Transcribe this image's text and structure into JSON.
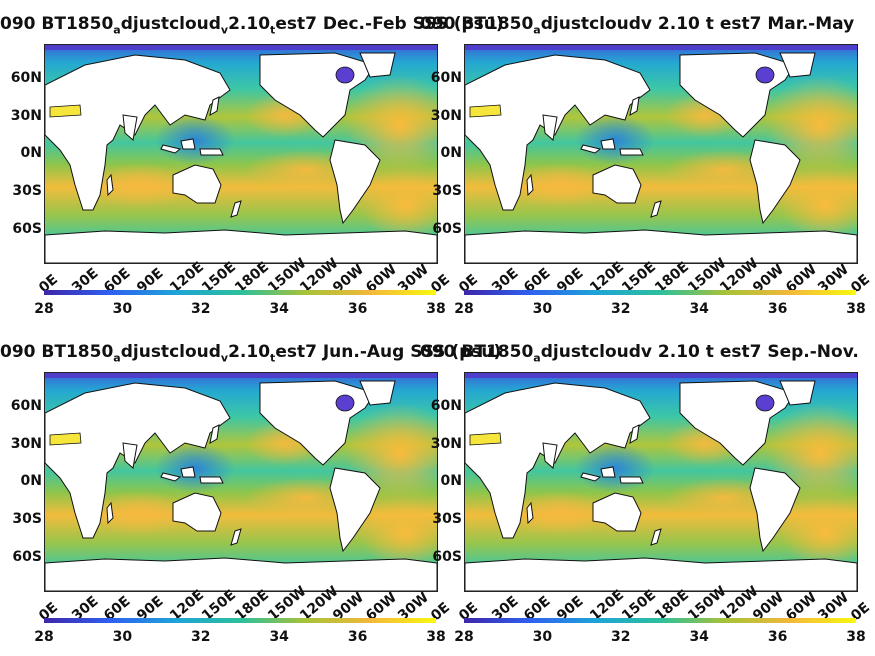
{
  "panels": [
    {
      "id": "djf",
      "title_pre": "090 BT1850",
      "title_sub1": "a",
      "title_mid1": "djustcloud",
      "title_sub2": "v",
      "title_mid2": "2.10",
      "title_sub3": "t",
      "title_post": "est7 Dec.-Feb SSS (psu)"
    },
    {
      "id": "mam",
      "title_pre": "",
      "title_sub1": "",
      "title_mid1": "090 BT1850",
      "title_sub2": "a",
      "title_mid2": "djustcloud",
      "title_sub3": "",
      "title_post": "v 2.10 t est7 Mar.-May"
    },
    {
      "id": "jja",
      "title_pre": "090 BT1850",
      "title_sub1": "a",
      "title_mid1": "djustcloud",
      "title_sub2": "v",
      "title_mid2": "2.10",
      "title_sub3": "t",
      "title_post": "est7 Jun.-Aug SSS (psu)"
    },
    {
      "id": "son",
      "title_pre": "",
      "title_sub1": "",
      "title_mid1": "090 BT1850",
      "title_sub2": "a",
      "title_mid2": "djustcloud",
      "title_sub3": "",
      "title_post": "v 2.10 t est7 Sep.-Nov."
    }
  ],
  "lat_ticks": [
    "60N",
    "30N",
    "0N",
    "30S",
    "60S"
  ],
  "lon_ticks": [
    "0E",
    "30E",
    "60E",
    "90E",
    "120E",
    "150E",
    "180E",
    "150W",
    "120W",
    "90W",
    "60W",
    "30W",
    "0E"
  ],
  "colorbar": {
    "ticks": [
      "28",
      "30",
      "32",
      "34",
      "36",
      "38"
    ],
    "min": 28,
    "max": 38
  },
  "colors": {
    "land": "#ffffff",
    "ocean_mid": "#3cc7a6",
    "ocean_salty": "#f7bb3e",
    "ocean_fresh": "#2e88e0",
    "polar_fresh": "#4c3ec9"
  }
}
